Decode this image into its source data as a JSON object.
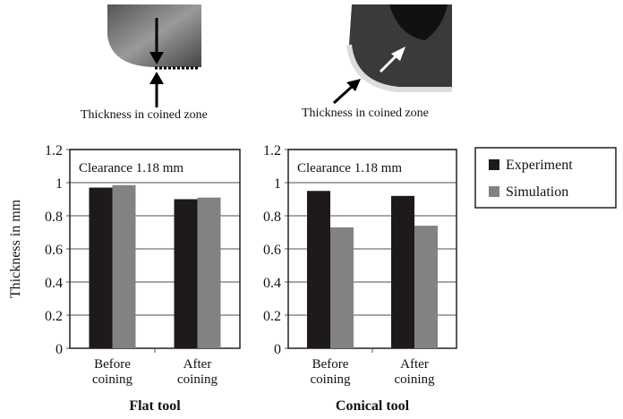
{
  "images": [
    {
      "caption": "Thickness in coined zone"
    },
    {
      "caption": "Thickness in coined zone"
    }
  ],
  "chart_data": [
    {
      "type": "bar",
      "title": "Flat tool",
      "annotation": "Clearance 1.18 mm",
      "ylabel": "Thickness in mm",
      "xlabel": "",
      "categories": [
        [
          "Before",
          "coining"
        ],
        [
          "After",
          "coining"
        ]
      ],
      "ylim": [
        0,
        1.2
      ],
      "yticks": [
        "0",
        "0.2",
        "0.4",
        "0.6",
        "0.8",
        "1",
        "1.2"
      ],
      "grid": true,
      "series": [
        {
          "name": "Experiment",
          "color": "#1e1a19",
          "values": [
            0.97,
            0.9
          ]
        },
        {
          "name": "Simulation",
          "color": "#828282",
          "values": [
            0.985,
            0.91
          ]
        }
      ]
    },
    {
      "type": "bar",
      "title": "Conical tool",
      "annotation": "Clearance 1.18 mm",
      "ylabel": "",
      "xlabel": "",
      "categories": [
        [
          "Before",
          "coining"
        ],
        [
          "After",
          "coining"
        ]
      ],
      "ylim": [
        0,
        1.2
      ],
      "yticks": [
        "0",
        "0.2",
        "0.4",
        "0.6",
        "0.8",
        "1",
        "1.2"
      ],
      "grid": true,
      "series": [
        {
          "name": "Experiment",
          "color": "#1e1a19",
          "values": [
            0.95,
            0.92
          ]
        },
        {
          "name": "Simulation",
          "color": "#828282",
          "values": [
            0.73,
            0.74
          ]
        }
      ]
    }
  ],
  "legend": {
    "placement": "right",
    "items": [
      {
        "label": "Experiment",
        "color": "#1e1a19"
      },
      {
        "label": "Simulation",
        "color": "#828282"
      }
    ]
  }
}
